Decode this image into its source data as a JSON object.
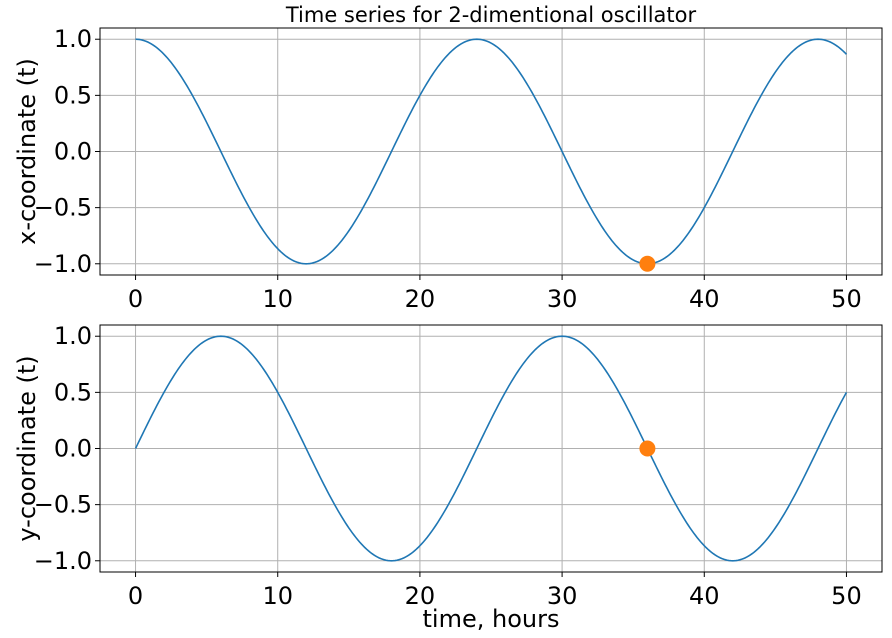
{
  "chart_data": [
    {
      "type": "line",
      "title": "Time series for 2-dimentional oscillator",
      "xlabel": "",
      "ylabel": "x-coordinate (t)",
      "xlim": [
        -2.5,
        52.5
      ],
      "ylim": [
        -1.1,
        1.1
      ],
      "xticks": [
        0,
        10,
        20,
        30,
        40,
        50
      ],
      "xtick_labels": [
        "0",
        "10",
        "20",
        "30",
        "40",
        "50"
      ],
      "yticks": [
        1.0,
        0.5,
        0.0,
        -0.5,
        -1.0
      ],
      "ytick_labels": [
        "1.0",
        "0.5",
        "0.0",
        "−0.5",
        "−1.0"
      ],
      "grid": true,
      "series": [
        {
          "function": "cos(2*pi*t/24)",
          "x": [
            0,
            2,
            4,
            6,
            8,
            10,
            12,
            14,
            16,
            18,
            20,
            22,
            24,
            26,
            28,
            30,
            32,
            34,
            36,
            38,
            40,
            42,
            44,
            46,
            48,
            50
          ],
          "values": [
            1.0,
            0.866,
            0.5,
            0.0,
            -0.5,
            -0.866,
            -1.0,
            -0.866,
            -0.5,
            0.0,
            0.5,
            0.866,
            1.0,
            0.866,
            0.5,
            0.0,
            -0.5,
            -0.866,
            -1.0,
            -0.866,
            -0.5,
            0.0,
            0.5,
            0.866,
            1.0,
            0.866
          ],
          "color": "#1f77b4"
        }
      ],
      "marker": {
        "x": 36,
        "y": -1.0,
        "color": "#ff7f0e"
      }
    },
    {
      "type": "line",
      "title": "",
      "xlabel": "time, hours",
      "ylabel": "y-coordinate (t)",
      "xlim": [
        -2.5,
        52.5
      ],
      "ylim": [
        -1.1,
        1.1
      ],
      "xticks": [
        0,
        10,
        20,
        30,
        40,
        50
      ],
      "xtick_labels": [
        "0",
        "10",
        "20",
        "30",
        "40",
        "50"
      ],
      "yticks": [
        1.0,
        0.5,
        0.0,
        -0.5,
        -1.0
      ],
      "ytick_labels": [
        "1.0",
        "0.5",
        "0.0",
        "−0.5",
        "−1.0"
      ],
      "grid": true,
      "series": [
        {
          "function": "sin(2*pi*t/24)",
          "x": [
            0,
            2,
            4,
            6,
            8,
            10,
            12,
            14,
            16,
            18,
            20,
            22,
            24,
            26,
            28,
            30,
            32,
            34,
            36,
            38,
            40,
            42,
            44,
            46,
            48,
            50
          ],
          "values": [
            0.0,
            0.5,
            0.866,
            1.0,
            0.866,
            0.5,
            0.0,
            -0.5,
            -0.866,
            -1.0,
            -0.866,
            -0.5,
            0.0,
            0.5,
            0.866,
            1.0,
            0.866,
            0.5,
            0.0,
            -0.5,
            -0.866,
            -1.0,
            -0.866,
            -0.5,
            0.0,
            0.5
          ],
          "color": "#1f77b4"
        }
      ],
      "marker": {
        "x": 36,
        "y": 0.0,
        "color": "#ff7f0e"
      }
    }
  ]
}
